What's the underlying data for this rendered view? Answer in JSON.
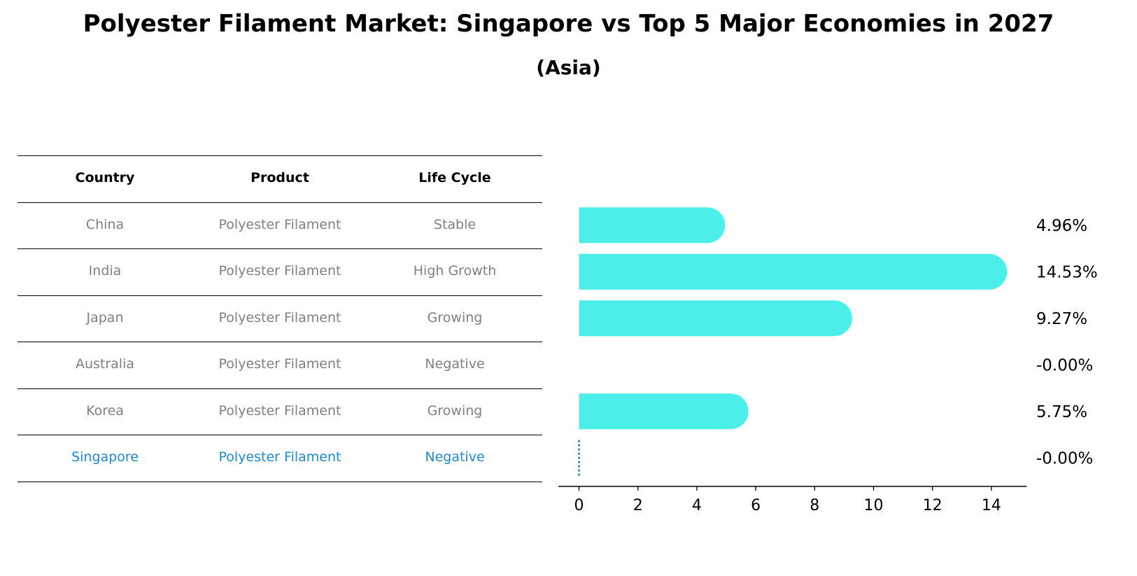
{
  "title": "Polyester Filament Market: Singapore vs Top 5 Major Economies in 2027",
  "subtitle": "(Asia)",
  "table": {
    "headers": [
      "Country",
      "Product",
      "Life Cycle"
    ],
    "rows": [
      {
        "country": "China",
        "product": "Polyester Filament",
        "life_cycle": "Stable"
      },
      {
        "country": "India",
        "product": "Polyester Filament",
        "life_cycle": "High Growth"
      },
      {
        "country": "Japan",
        "product": "Polyester Filament",
        "life_cycle": "Growing"
      },
      {
        "country": "Australia",
        "product": "Polyester Filament",
        "life_cycle": "Negative"
      },
      {
        "country": "Korea",
        "product": "Polyester Filament",
        "life_cycle": "Growing"
      },
      {
        "country": "Singapore",
        "product": "Polyester Filament",
        "life_cycle": "Negative"
      }
    ],
    "highlight_row": 5
  },
  "chart_data": {
    "type": "bar",
    "orientation": "horizontal",
    "categories": [
      "China",
      "India",
      "Japan",
      "Australia",
      "Korea",
      "Singapore"
    ],
    "values": [
      4.96,
      14.53,
      9.27,
      -0.0,
      5.75,
      -0.0
    ],
    "value_labels": [
      "4.96%",
      "14.53%",
      "9.27%",
      "-0.00%",
      "5.75%",
      "-0.00%"
    ],
    "xlim": [
      -0.7,
      15.2
    ],
    "xticks": [
      0,
      2,
      4,
      6,
      8,
      10,
      12,
      14
    ],
    "bar_color": "#4ceeea",
    "highlight_color": "#1f77b4",
    "grid": false
  }
}
